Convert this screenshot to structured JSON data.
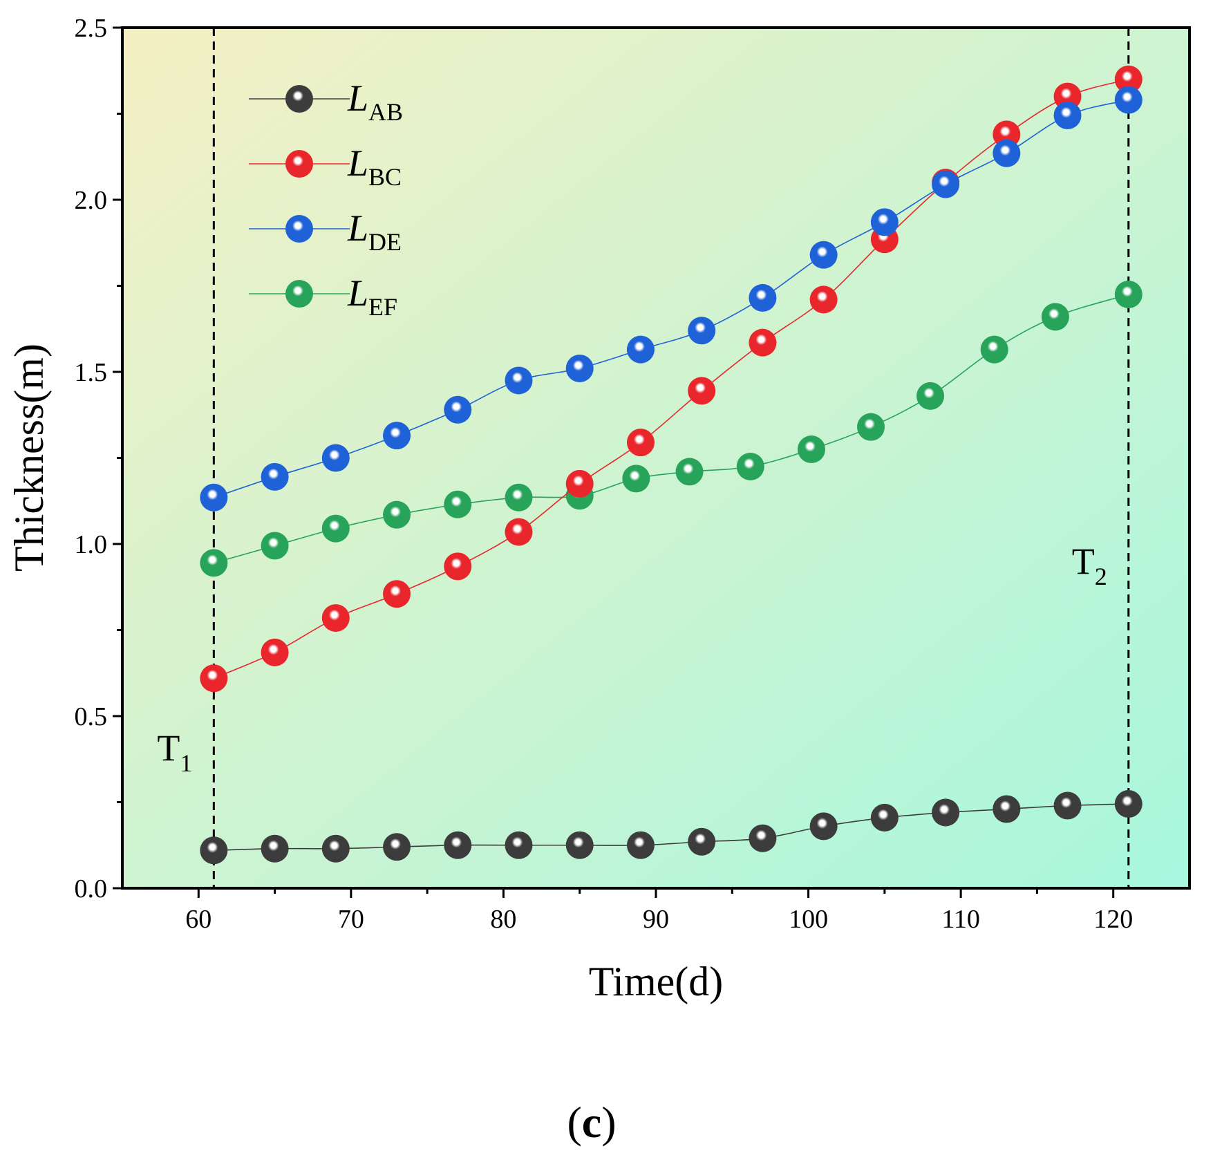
{
  "colors": {
    "LAB": "#3c3c3c",
    "LBC": "#e8262c",
    "LDE": "#1f62d8",
    "LEF": "#27a35a",
    "bg_start": "#f5f0c4",
    "bg_end": "#a7f7de"
  },
  "chart_data": {
    "type": "line",
    "xlabel": "Time(d)",
    "ylabel": "Thickness(m)",
    "xlim": [
      55,
      125
    ],
    "ylim": [
      0,
      2.5
    ],
    "xticks": [
      "60",
      "70",
      "80",
      "90",
      "100",
      "110",
      "120"
    ],
    "xtick_values": [
      60,
      70,
      80,
      90,
      100,
      110,
      120
    ],
    "yticks": [
      "0.0",
      "0.5",
      "1.0",
      "1.5",
      "2.0",
      "2.5"
    ],
    "ytick_values": [
      0,
      0.5,
      1.0,
      1.5,
      2.0,
      2.5
    ],
    "legend_position": "top-left",
    "series": [
      {
        "key": "LAB",
        "name_main": "L",
        "name_sub": "AB",
        "x": [
          61,
          65,
          69,
          73,
          77,
          81,
          85,
          89,
          93,
          97,
          101,
          105,
          109,
          113,
          117,
          121
        ],
        "y": [
          0.11,
          0.115,
          0.115,
          0.12,
          0.125,
          0.125,
          0.125,
          0.125,
          0.135,
          0.145,
          0.18,
          0.205,
          0.22,
          0.23,
          0.24,
          0.245
        ]
      },
      {
        "key": "LBC",
        "name_main": "L",
        "name_sub": "BC",
        "x": [
          61,
          65,
          69,
          73,
          77,
          81,
          85,
          89,
          93,
          97,
          101,
          105,
          109,
          113,
          117,
          121
        ],
        "y": [
          0.61,
          0.685,
          0.785,
          0.855,
          0.935,
          1.035,
          1.175,
          1.295,
          1.445,
          1.585,
          1.71,
          1.885,
          2.05,
          2.19,
          2.3,
          2.35
        ]
      },
      {
        "key": "LDE",
        "name_main": "L",
        "name_sub": "DE",
        "x": [
          61,
          65,
          69,
          73,
          77,
          81,
          85,
          89,
          93,
          97,
          101,
          105,
          109,
          113,
          117,
          121
        ],
        "y": [
          1.135,
          1.195,
          1.25,
          1.315,
          1.39,
          1.475,
          1.51,
          1.565,
          1.62,
          1.715,
          1.84,
          1.935,
          2.045,
          2.135,
          2.245,
          2.29
        ]
      },
      {
        "key": "LEF",
        "name_main": "L",
        "name_sub": "EF",
        "x": [
          61,
          65,
          69,
          73,
          77,
          81,
          85,
          88.7,
          92.2,
          96.2,
          100.2,
          104.1,
          108,
          112.2,
          116.2,
          121
        ],
        "y": [
          0.945,
          0.995,
          1.045,
          1.085,
          1.115,
          1.135,
          1.14,
          1.19,
          1.21,
          1.225,
          1.275,
          1.34,
          1.43,
          1.565,
          1.66,
          1.725
        ]
      }
    ],
    "markers": [
      {
        "x": 61,
        "label_main": "T",
        "label_sub": "1",
        "side": "left"
      },
      {
        "x": 121,
        "label_main": "T",
        "label_sub": "2",
        "side": "left"
      }
    ]
  },
  "panel": {
    "open": "(",
    "letter": "c",
    "close": ")"
  }
}
